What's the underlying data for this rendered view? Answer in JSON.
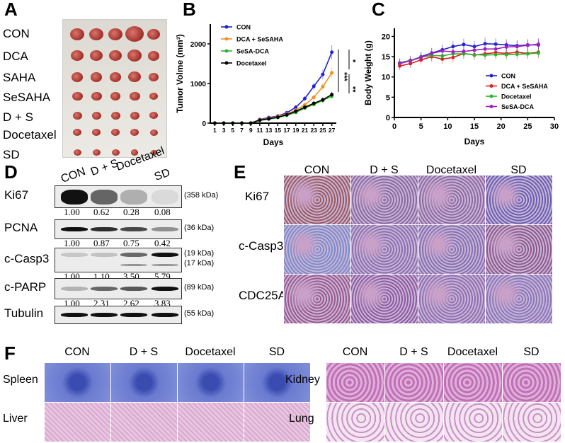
{
  "panels": {
    "a": "A",
    "b": "B",
    "c": "C",
    "d": "D",
    "e": "E",
    "f": "F"
  },
  "panel_a": {
    "rows": [
      "CON",
      "DCA",
      "SAHA",
      "SeSAHA",
      "D + S",
      "Docetaxel",
      "SD"
    ]
  },
  "panel_d": {
    "columns": [
      "CON",
      "D + S",
      "Docetaxel",
      "SD"
    ],
    "blots": [
      {
        "label": "Ki67",
        "kda": [
          "(358 kDa)"
        ],
        "values": [
          "1.00",
          "0.62",
          "0.28",
          "0.08"
        ],
        "intensity": [
          1.0,
          0.62,
          0.28,
          0.08
        ]
      },
      {
        "label": "PCNA",
        "kda": [
          "(36 kDa)"
        ],
        "values": [
          "1.00",
          "0.87",
          "0.75",
          "0.42"
        ],
        "intensity": [
          1.0,
          0.87,
          0.75,
          0.42
        ]
      },
      {
        "label": "c-Casp3",
        "kda": [
          "(19 kDa)",
          "(17 kDa)"
        ],
        "values": [
          "1.00",
          "1.10",
          "3.50",
          "5.79"
        ],
        "intensity": [
          0.17,
          0.19,
          0.6,
          1.0
        ]
      },
      {
        "label": "c-PARP",
        "kda": [
          "(89 kDa)"
        ],
        "values": [
          "1.00",
          "2.31",
          "2.62",
          "3.83"
        ],
        "intensity": [
          0.26,
          0.6,
          0.68,
          1.0
        ]
      },
      {
        "label": "Tubulin",
        "kda": [
          "(55 kDa)"
        ],
        "values": [],
        "intensity": [
          1,
          1,
          1,
          1
        ]
      }
    ]
  },
  "panel_e": {
    "columns": [
      "CON",
      "D + S",
      "Docetaxel",
      "SD"
    ],
    "rows": [
      "Ki67",
      "c-Casp3",
      "CDC25A"
    ]
  },
  "panel_f": {
    "left_columns": [
      "CON",
      "D + S",
      "Docetaxel",
      "SD"
    ],
    "left_rows": [
      "Spleen",
      "Liver"
    ],
    "right_columns": [
      "CON",
      "D + S",
      "Docetaxel",
      "SD"
    ],
    "right_rows": [
      "Kidney",
      "Lung"
    ]
  },
  "chart_data": [
    {
      "type": "line",
      "panel": "B",
      "xlabel": "Days",
      "ylabel": "Tumor Volme (mm³)",
      "ylim": [
        0,
        2500
      ],
      "yticks": [
        0,
        1000,
        2000
      ],
      "x": [
        1,
        3,
        5,
        7,
        9,
        11,
        13,
        15,
        17,
        19,
        21,
        23,
        25,
        27
      ],
      "significance": [
        "*",
        "***",
        "**"
      ],
      "series": [
        {
          "name": "CON",
          "color": "#1f1fd6",
          "values": [
            0,
            0,
            0,
            0,
            0,
            90,
            140,
            180,
            260,
            400,
            620,
            930,
            1230,
            1790
          ]
        },
        {
          "name": "DCA + SeSAHA",
          "color": "#f0901e",
          "values": [
            0,
            0,
            0,
            0,
            0,
            80,
            120,
            170,
            230,
            330,
            460,
            650,
            920,
            1270
          ]
        },
        {
          "name": "SeSA-DCA",
          "color": "#2cb52c",
          "values": [
            0,
            0,
            0,
            0,
            0,
            70,
            100,
            140,
            200,
            270,
            380,
            470,
            570,
            680
          ]
        },
        {
          "name": "Docetaxel",
          "color": "#000000",
          "values": [
            0,
            0,
            0,
            0,
            0,
            75,
            110,
            150,
            210,
            300,
            400,
            500,
            590,
            720
          ]
        }
      ]
    },
    {
      "type": "line",
      "panel": "C",
      "xlabel": "Days",
      "ylabel": "Body Weight (g)",
      "xlim": [
        0,
        30
      ],
      "ylim": [
        0,
        22
      ],
      "xticks": [
        0,
        5,
        10,
        15,
        20,
        25,
        30
      ],
      "yticks": [
        0,
        5,
        10,
        15,
        20
      ],
      "x": [
        1,
        3,
        5,
        7,
        9,
        11,
        13,
        15,
        17,
        19,
        21,
        23,
        25,
        27
      ],
      "series": [
        {
          "name": "CON",
          "color": "#1f1fd6",
          "values": [
            13.3,
            14,
            15,
            15.9,
            16.7,
            17.5,
            18,
            17.5,
            18.2,
            18.1,
            17.9,
            17.7,
            17.9,
            17.9
          ]
        },
        {
          "name": "DCA + SeSAHA",
          "color": "#e01e1e",
          "values": [
            12.7,
            13.3,
            14.2,
            15,
            14.4,
            14.8,
            15.8,
            15.4,
            15.7,
            16,
            15.8,
            16.1,
            15.8,
            16.1
          ]
        },
        {
          "name": "Docetaxel",
          "color": "#2cb52c",
          "values": [
            13.5,
            14.1,
            14.9,
            15.3,
            15.2,
            15.7,
            15.7,
            15.5,
            15.4,
            15.5,
            15.5,
            15.6,
            15.7,
            15.9
          ]
        },
        {
          "name": "SeSA-DCA",
          "color": "#a020c0",
          "values": [
            13.4,
            14,
            14.8,
            15.8,
            16.4,
            16.2,
            16.3,
            16.6,
            16.9,
            16.9,
            17.4,
            17.5,
            17.8,
            18.1
          ]
        }
      ]
    }
  ]
}
